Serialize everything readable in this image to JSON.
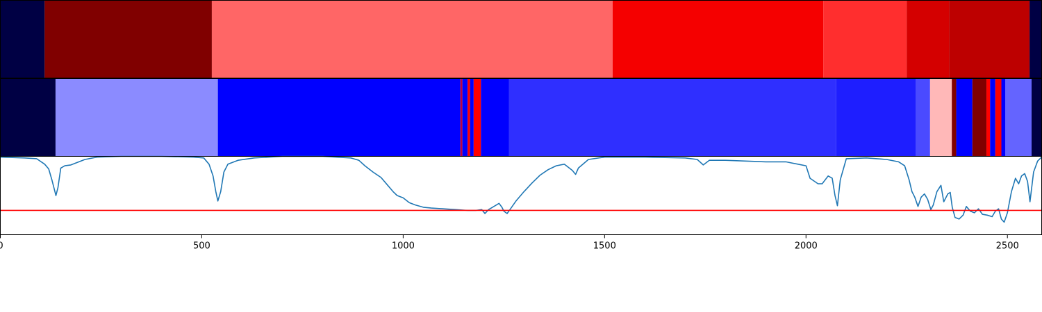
{
  "chart_data": [
    {
      "type": "heatmap",
      "panel": "top-strip",
      "xlim": [
        0,
        2585
      ],
      "segments": [
        {
          "x0": 0,
          "x1": 110,
          "color": "#000044"
        },
        {
          "x0": 110,
          "x1": 525,
          "color": "#800000"
        },
        {
          "x0": 525,
          "x1": 1520,
          "color": "#ff6666"
        },
        {
          "x0": 1520,
          "x1": 2043,
          "color": "#f50000"
        },
        {
          "x0": 2043,
          "x1": 2250,
          "color": "#ff2e2e"
        },
        {
          "x0": 2250,
          "x1": 2355,
          "color": "#d40000"
        },
        {
          "x0": 2355,
          "x1": 2555,
          "color": "#bd0000"
        },
        {
          "x0": 2555,
          "x1": 2585,
          "color": "#000044"
        }
      ]
    },
    {
      "type": "heatmap",
      "panel": "middle-strip",
      "xlim": [
        0,
        2585
      ],
      "segments": [
        {
          "x0": 0,
          "x1": 137,
          "color": "#000044"
        },
        {
          "x0": 137,
          "x1": 540,
          "color": "#8b8bff"
        },
        {
          "x0": 540,
          "x1": 1142,
          "color": "#0000ff"
        },
        {
          "x0": 1142,
          "x1": 1147,
          "color": "#c00040"
        },
        {
          "x0": 1147,
          "x1": 1160,
          "color": "#0000ff"
        },
        {
          "x0": 1160,
          "x1": 1166,
          "color": "#ff0000"
        },
        {
          "x0": 1166,
          "x1": 1175,
          "color": "#0000ff"
        },
        {
          "x0": 1175,
          "x1": 1193,
          "color": "#ff0000"
        },
        {
          "x0": 1193,
          "x1": 1263,
          "color": "#0000ff"
        },
        {
          "x0": 1263,
          "x1": 2075,
          "color": "#2f2fff"
        },
        {
          "x0": 2075,
          "x1": 2272,
          "color": "#1e1eff"
        },
        {
          "x0": 2272,
          "x1": 2308,
          "color": "#4a4aff"
        },
        {
          "x0": 2308,
          "x1": 2362,
          "color": "#ffb8b8"
        },
        {
          "x0": 2362,
          "x1": 2373,
          "color": "#800000"
        },
        {
          "x0": 2373,
          "x1": 2413,
          "color": "#0000ff"
        },
        {
          "x0": 2413,
          "x1": 2448,
          "color": "#800000"
        },
        {
          "x0": 2448,
          "x1": 2457,
          "color": "#ff0000"
        },
        {
          "x0": 2457,
          "x1": 2470,
          "color": "#0000ff"
        },
        {
          "x0": 2470,
          "x1": 2485,
          "color": "#ff0000"
        },
        {
          "x0": 2485,
          "x1": 2495,
          "color": "#0000ff"
        },
        {
          "x0": 2495,
          "x1": 2560,
          "color": "#6464ff"
        },
        {
          "x0": 2560,
          "x1": 2585,
          "color": "#000044"
        }
      ]
    },
    {
      "type": "line",
      "panel": "bottom-plot",
      "xlim": [
        0,
        2585
      ],
      "ylim": [
        0,
        1
      ],
      "line_color": "#1f77b4",
      "threshold": 0.31,
      "threshold_color": "#ff0000",
      "xticks": [
        0,
        500,
        1000,
        1500,
        2000,
        2500
      ],
      "xtick_labels": [
        "0",
        "500",
        "1000",
        "1500",
        "2000",
        "2500"
      ],
      "points": [
        [
          0,
          0.99
        ],
        [
          60,
          0.98
        ],
        [
          90,
          0.97
        ],
        [
          110,
          0.9
        ],
        [
          120,
          0.84
        ],
        [
          128,
          0.7
        ],
        [
          133,
          0.6
        ],
        [
          138,
          0.5
        ],
        [
          143,
          0.6
        ],
        [
          150,
          0.85
        ],
        [
          160,
          0.88
        ],
        [
          175,
          0.89
        ],
        [
          190,
          0.92
        ],
        [
          210,
          0.96
        ],
        [
          240,
          0.99
        ],
        [
          300,
          1.0
        ],
        [
          400,
          1.0
        ],
        [
          480,
          0.99
        ],
        [
          505,
          0.98
        ],
        [
          518,
          0.9
        ],
        [
          528,
          0.75
        ],
        [
          535,
          0.55
        ],
        [
          540,
          0.43
        ],
        [
          547,
          0.55
        ],
        [
          555,
          0.8
        ],
        [
          565,
          0.9
        ],
        [
          590,
          0.95
        ],
        [
          630,
          0.98
        ],
        [
          700,
          1.0
        ],
        [
          800,
          1.0
        ],
        [
          870,
          0.98
        ],
        [
          890,
          0.95
        ],
        [
          905,
          0.88
        ],
        [
          925,
          0.8
        ],
        [
          945,
          0.73
        ],
        [
          960,
          0.64
        ],
        [
          975,
          0.55
        ],
        [
          985,
          0.5
        ],
        [
          1000,
          0.47
        ],
        [
          1015,
          0.41
        ],
        [
          1030,
          0.38
        ],
        [
          1050,
          0.35
        ],
        [
          1070,
          0.34
        ],
        [
          1100,
          0.33
        ],
        [
          1130,
          0.32
        ],
        [
          1160,
          0.31
        ],
        [
          1180,
          0.31
        ],
        [
          1195,
          0.32
        ],
        [
          1203,
          0.27
        ],
        [
          1212,
          0.32
        ],
        [
          1225,
          0.36
        ],
        [
          1238,
          0.4
        ],
        [
          1245,
          0.35
        ],
        [
          1250,
          0.3
        ],
        [
          1258,
          0.27
        ],
        [
          1265,
          0.32
        ],
        [
          1280,
          0.43
        ],
        [
          1300,
          0.55
        ],
        [
          1320,
          0.66
        ],
        [
          1340,
          0.76
        ],
        [
          1360,
          0.83
        ],
        [
          1380,
          0.88
        ],
        [
          1400,
          0.9
        ],
        [
          1420,
          0.82
        ],
        [
          1428,
          0.77
        ],
        [
          1435,
          0.85
        ],
        [
          1460,
          0.96
        ],
        [
          1500,
          0.99
        ],
        [
          1600,
          0.99
        ],
        [
          1700,
          0.98
        ],
        [
          1730,
          0.96
        ],
        [
          1745,
          0.89
        ],
        [
          1760,
          0.95
        ],
        [
          1800,
          0.95
        ],
        [
          1850,
          0.94
        ],
        [
          1900,
          0.93
        ],
        [
          1950,
          0.93
        ],
        [
          1980,
          0.9
        ],
        [
          2000,
          0.88
        ],
        [
          2010,
          0.72
        ],
        [
          2030,
          0.65
        ],
        [
          2040,
          0.65
        ],
        [
          2055,
          0.75
        ],
        [
          2065,
          0.72
        ],
        [
          2072,
          0.5
        ],
        [
          2078,
          0.37
        ],
        [
          2085,
          0.7
        ],
        [
          2100,
          0.97
        ],
        [
          2150,
          0.98
        ],
        [
          2200,
          0.96
        ],
        [
          2230,
          0.93
        ],
        [
          2245,
          0.88
        ],
        [
          2256,
          0.7
        ],
        [
          2263,
          0.55
        ],
        [
          2270,
          0.48
        ],
        [
          2278,
          0.36
        ],
        [
          2286,
          0.48
        ],
        [
          2294,
          0.52
        ],
        [
          2302,
          0.45
        ],
        [
          2310,
          0.32
        ],
        [
          2316,
          0.38
        ],
        [
          2325,
          0.55
        ],
        [
          2335,
          0.63
        ],
        [
          2342,
          0.42
        ],
        [
          2352,
          0.52
        ],
        [
          2358,
          0.54
        ],
        [
          2363,
          0.35
        ],
        [
          2370,
          0.22
        ],
        [
          2380,
          0.2
        ],
        [
          2390,
          0.25
        ],
        [
          2398,
          0.36
        ],
        [
          2408,
          0.3
        ],
        [
          2418,
          0.28
        ],
        [
          2428,
          0.33
        ],
        [
          2438,
          0.26
        ],
        [
          2450,
          0.25
        ],
        [
          2462,
          0.23
        ],
        [
          2470,
          0.3
        ],
        [
          2478,
          0.33
        ],
        [
          2485,
          0.2
        ],
        [
          2492,
          0.16
        ],
        [
          2500,
          0.28
        ],
        [
          2510,
          0.55
        ],
        [
          2520,
          0.72
        ],
        [
          2528,
          0.65
        ],
        [
          2535,
          0.75
        ],
        [
          2543,
          0.78
        ],
        [
          2550,
          0.68
        ],
        [
          2556,
          0.42
        ],
        [
          2565,
          0.8
        ],
        [
          2575,
          0.94
        ],
        [
          2585,
          0.99
        ]
      ]
    }
  ]
}
